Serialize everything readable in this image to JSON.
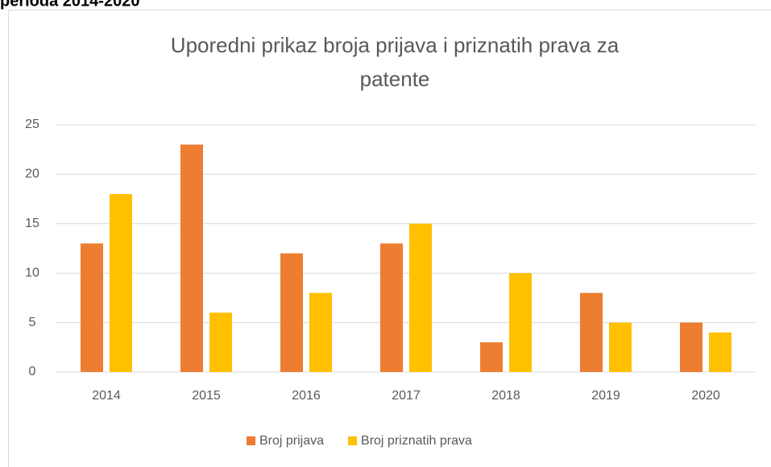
{
  "heading": "perioda 2014-2020",
  "chart_data": {
    "type": "bar",
    "title": [
      "Uporedni prikaz broja prijava i priznatih prava za",
      "patente"
    ],
    "categories": [
      "2014",
      "2015",
      "2016",
      "2017",
      "2018",
      "2019",
      "2020"
    ],
    "series": [
      {
        "name": "Broj prijava",
        "color": "#ed7d31",
        "values": [
          13,
          23,
          12,
          13,
          3,
          8,
          5
        ]
      },
      {
        "name": "Broj priznatih prava",
        "color": "#ffc000",
        "values": [
          18,
          6,
          8,
          15,
          10,
          5,
          4
        ]
      }
    ],
    "ylim": [
      0,
      25
    ],
    "yticks": [
      0,
      5,
      10,
      15,
      20,
      25
    ],
    "grid": true,
    "legend": "bottom"
  }
}
